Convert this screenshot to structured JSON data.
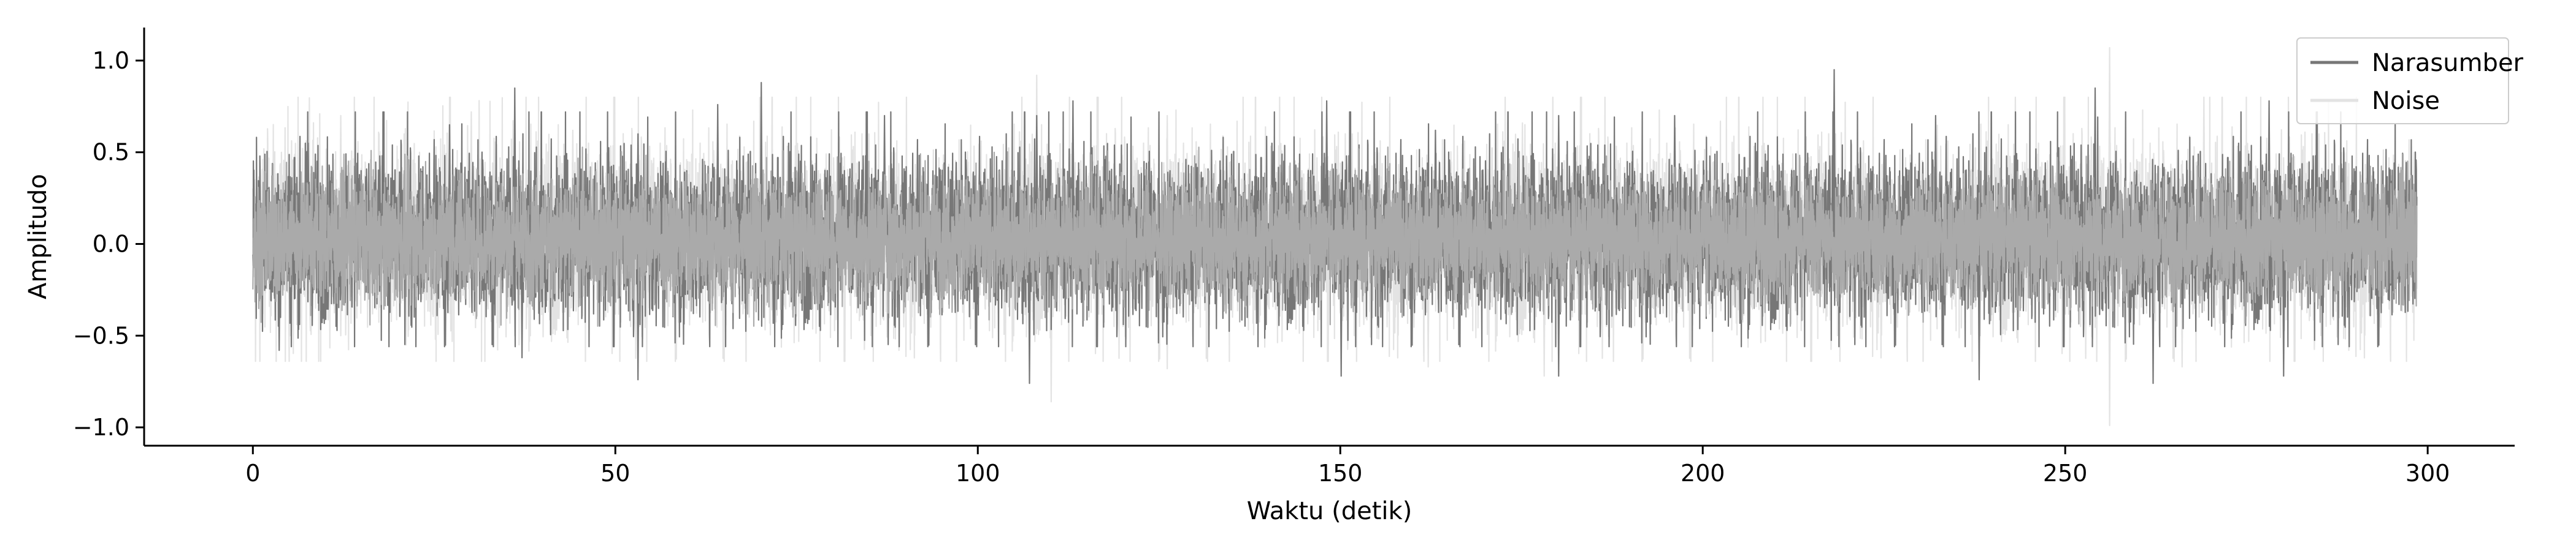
{
  "chart_data": {
    "type": "line",
    "title": "",
    "xlabel": "Waktu (detik)",
    "ylabel": "Amplitudo",
    "xlim": [
      -15,
      312
    ],
    "ylim": [
      -1.1,
      1.18
    ],
    "xticks": [
      0,
      50,
      100,
      150,
      200,
      250,
      300
    ],
    "yticks": [
      -1.0,
      -0.5,
      0.0,
      0.5,
      1.0
    ],
    "xtick_labels": [
      "0",
      "50",
      "100",
      "150",
      "200",
      "250",
      "300"
    ],
    "ytick_labels": [
      "−1.0",
      "−0.5",
      "0.0",
      "0.5",
      "1.0"
    ],
    "grid": false,
    "legend_position": "top-right",
    "x_range_of_signal": [
      0,
      298.5
    ],
    "series": [
      {
        "name": "Narasumber",
        "color": "#777777",
        "typical_envelope": [
          -0.35,
          0.45
        ],
        "peaks": [
          {
            "x": 7.5,
            "y": 0.55
          },
          {
            "x": 27,
            "y": 0.65
          },
          {
            "x": 36,
            "y": 0.85
          },
          {
            "x": 53,
            "y": 0.6
          },
          {
            "x": 64,
            "y": 0.76
          },
          {
            "x": 70,
            "y": 0.88
          },
          {
            "x": 87,
            "y": 0.7
          },
          {
            "x": 108,
            "y": 0.7
          },
          {
            "x": 113,
            "y": 0.78
          },
          {
            "x": 148,
            "y": 0.78
          },
          {
            "x": 163,
            "y": 0.62
          },
          {
            "x": 180,
            "y": 0.7
          },
          {
            "x": 196,
            "y": 0.7
          },
          {
            "x": 218,
            "y": 0.95
          },
          {
            "x": 232,
            "y": 0.7
          },
          {
            "x": 254,
            "y": 0.85
          },
          {
            "x": 278,
            "y": 0.78
          }
        ],
        "troughs": [
          {
            "x": 3.5,
            "y": -0.58
          },
          {
            "x": 37,
            "y": -0.62
          },
          {
            "x": 53,
            "y": -0.74
          },
          {
            "x": 107,
            "y": -0.76
          },
          {
            "x": 150,
            "y": -0.72
          },
          {
            "x": 180,
            "y": -0.72
          },
          {
            "x": 238,
            "y": -0.74
          },
          {
            "x": 262,
            "y": -0.76
          },
          {
            "x": 280,
            "y": -0.72
          }
        ]
      },
      {
        "name": "Noise",
        "color": "#e3e3e3",
        "typical_envelope": [
          -0.4,
          0.5
        ],
        "peaks": [
          {
            "x": 12,
            "y": 0.7
          },
          {
            "x": 30,
            "y": 0.72
          },
          {
            "x": 44,
            "y": 0.62
          },
          {
            "x": 108,
            "y": 0.92
          },
          {
            "x": 126,
            "y": 0.7
          },
          {
            "x": 175,
            "y": 0.66
          },
          {
            "x": 243,
            "y": 0.8
          },
          {
            "x": 256,
            "y": 1.07
          },
          {
            "x": 269,
            "y": 0.8
          },
          {
            "x": 298,
            "y": 0.5
          }
        ],
        "troughs": [
          {
            "x": 5,
            "y": -0.5
          },
          {
            "x": 12,
            "y": -0.5
          },
          {
            "x": 21,
            "y": -0.55
          },
          {
            "x": 36,
            "y": -0.5
          },
          {
            "x": 89,
            "y": -0.58
          },
          {
            "x": 110,
            "y": -0.86
          },
          {
            "x": 126,
            "y": -0.68
          },
          {
            "x": 162,
            "y": -0.67
          },
          {
            "x": 178,
            "y": -0.72
          },
          {
            "x": 256,
            "y": -0.99
          },
          {
            "x": 266,
            "y": -0.67
          },
          {
            "x": 289,
            "y": -0.58
          }
        ]
      },
      {
        "name": "",
        "color": "#aaaaaa",
        "typical_envelope": [
          -0.28,
          0.33
        ]
      }
    ]
  }
}
